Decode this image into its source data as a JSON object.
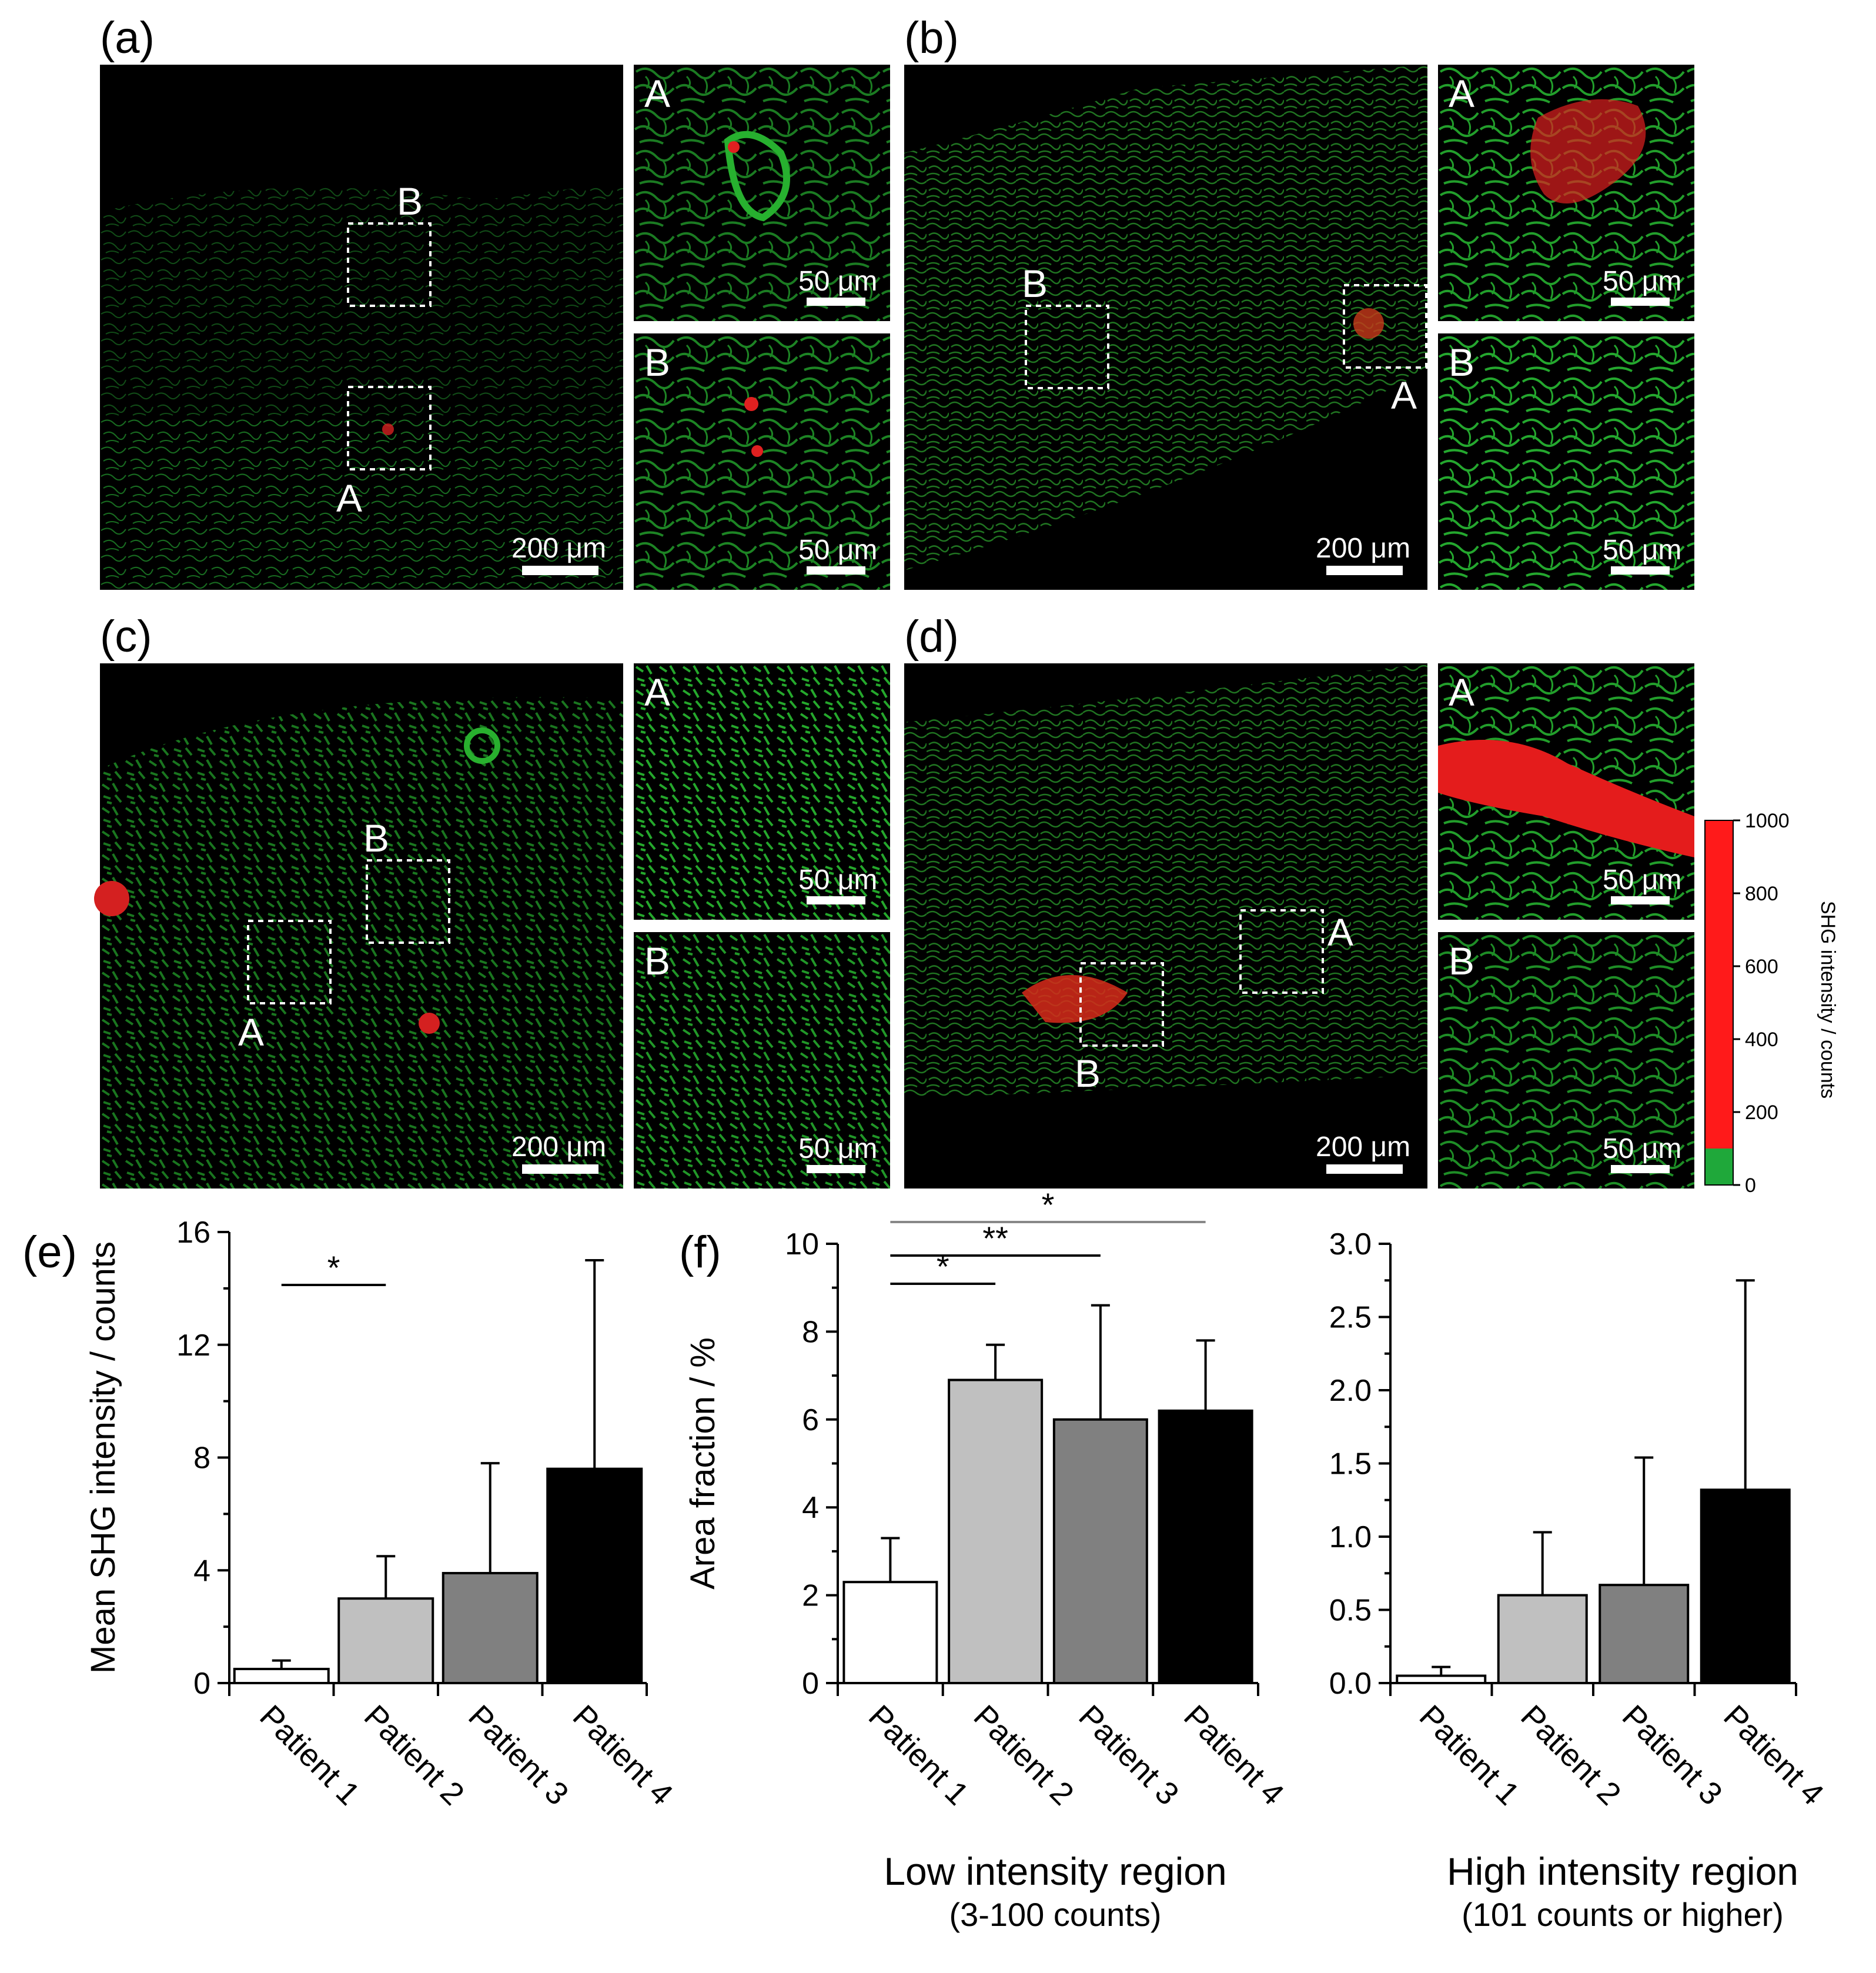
{
  "micrographs": {
    "panels": [
      {
        "letter": "(a)",
        "roi_labels": [
          "B",
          "A"
        ],
        "inset_labels": [
          "A",
          "B"
        ],
        "main_scale": "200 μm",
        "inset_scale": "50 μm",
        "red_level": 0.15
      },
      {
        "letter": "(b)",
        "roi_labels": [
          "B",
          "A"
        ],
        "inset_labels": [
          "A",
          "B"
        ],
        "main_scale": "200 μm",
        "inset_scale": "50 μm",
        "red_level": 0.35
      },
      {
        "letter": "(c)",
        "roi_labels": [
          "B",
          "A"
        ],
        "inset_labels": [
          "A",
          "B"
        ],
        "main_scale": "200 μm",
        "inset_scale": "50 μm",
        "red_level": 0.25
      },
      {
        "letter": "(d)",
        "roi_labels": [
          "A",
          "B"
        ],
        "inset_labels": [
          "A",
          "B"
        ],
        "main_scale": "200 μm",
        "inset_scale": "50 μm",
        "red_level": 0.6
      }
    ],
    "colorbar": {
      "title": "SHG intensity / counts",
      "ticks": [
        "1000",
        "800",
        "600",
        "400",
        "200",
        "0"
      ],
      "colors": {
        "high": "#ff1a1a",
        "low": "#1fa83a"
      },
      "threshold": 100,
      "max": 1000
    }
  },
  "bottom_panels": {
    "e": {
      "letter": "(e)"
    },
    "f": {
      "letter": "(f)",
      "low_title": "Low intensity region",
      "low_sub": "(3-100 counts)",
      "high_title": "High intensity region",
      "high_sub": "(101 counts or higher)"
    }
  },
  "chart_data": [
    {
      "id": "e",
      "type": "bar",
      "categories": [
        "Patient 1",
        "Patient 2",
        "Patient 3",
        "Patient 4"
      ],
      "values": [
        0.5,
        3.0,
        3.9,
        7.6
      ],
      "errors": [
        0.3,
        1.5,
        3.9,
        7.4
      ],
      "colors": [
        "#ffffff",
        "#c0c0c0",
        "#808080",
        "#000000"
      ],
      "ylabel": "Mean SHG intensity / counts",
      "ylim": [
        0,
        16
      ],
      "yticks": [
        "0",
        "4",
        "8",
        "12",
        "16"
      ],
      "significance": [
        {
          "from": 0,
          "to": 1,
          "label": "*"
        }
      ]
    },
    {
      "id": "f-low",
      "type": "bar",
      "categories": [
        "Patient 1",
        "Patient 2",
        "Patient 3",
        "Patient 4"
      ],
      "values": [
        2.3,
        6.9,
        6.0,
        6.2
      ],
      "errors": [
        1.0,
        0.8,
        2.6,
        1.6
      ],
      "colors": [
        "#ffffff",
        "#c0c0c0",
        "#808080",
        "#000000"
      ],
      "ylabel": "Area fraction / %",
      "ylim": [
        0,
        10
      ],
      "yticks": [
        "0",
        "2",
        "4",
        "6",
        "8",
        "10"
      ],
      "significance": [
        {
          "from": 0,
          "to": 1,
          "label": "*"
        },
        {
          "from": 0,
          "to": 2,
          "label": "**"
        },
        {
          "from": 0,
          "to": 3,
          "label": "*"
        }
      ]
    },
    {
      "id": "f-high",
      "type": "bar",
      "categories": [
        "Patient 1",
        "Patient 2",
        "Patient 3",
        "Patient 4"
      ],
      "values": [
        0.05,
        0.6,
        0.67,
        1.32
      ],
      "errors": [
        0.06,
        0.43,
        0.87,
        1.43
      ],
      "colors": [
        "#ffffff",
        "#c0c0c0",
        "#808080",
        "#000000"
      ],
      "ylabel": "",
      "ylim": [
        0,
        3.0
      ],
      "yticks": [
        "0.0",
        "0.5",
        "1.0",
        "1.5",
        "2.0",
        "2.5",
        "3.0"
      ],
      "significance": []
    }
  ]
}
